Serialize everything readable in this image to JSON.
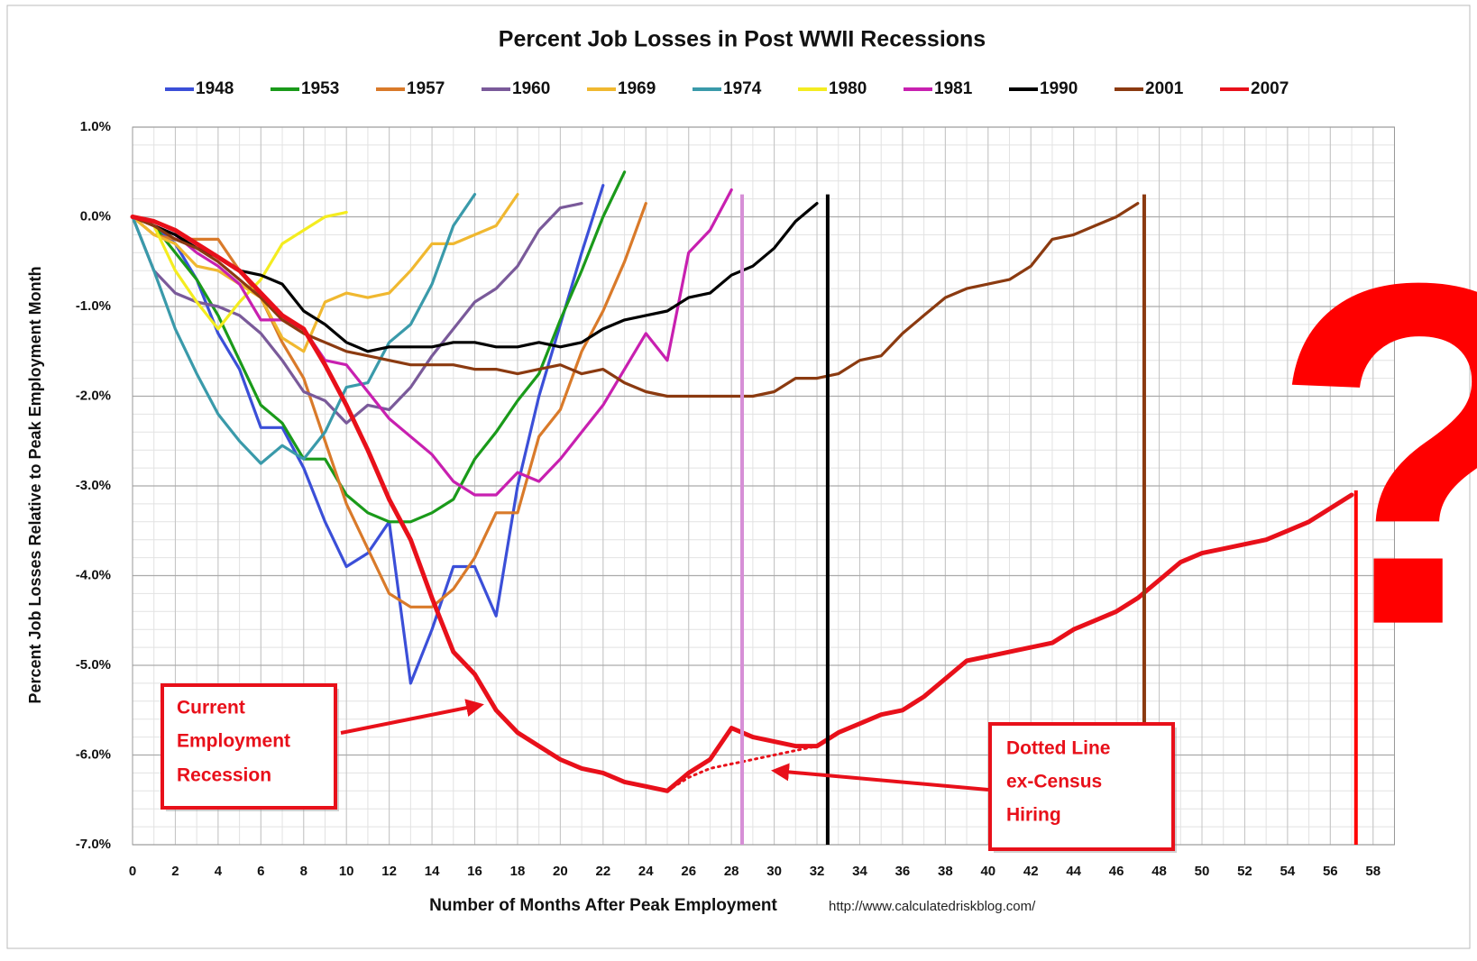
{
  "chart_data": {
    "type": "line",
    "title": "Percent Job Losses in Post WWII Recessions",
    "xlabel": "Number of Months After Peak Employment",
    "ylabel": "Percent Job Losses Relative to Peak Employment Month",
    "source": "http://www.calculatedriskblog.com/",
    "x": [
      0,
      1,
      2,
      3,
      4,
      5,
      6,
      7,
      8,
      9,
      10,
      11,
      12,
      13,
      14,
      15,
      16,
      17,
      18,
      19,
      20,
      21,
      22,
      23,
      24,
      25,
      26,
      27,
      28,
      29,
      30,
      31,
      32,
      33,
      34,
      35,
      36,
      37,
      38,
      39,
      40,
      41,
      42,
      43,
      44,
      45,
      46,
      47,
      48,
      49,
      50,
      51,
      52,
      53,
      54,
      55,
      56,
      57
    ],
    "xlim": [
      0,
      59
    ],
    "ylim": [
      -7,
      1
    ],
    "xticks": [
      0,
      2,
      4,
      6,
      8,
      10,
      12,
      14,
      16,
      18,
      20,
      22,
      24,
      26,
      28,
      30,
      32,
      34,
      36,
      38,
      40,
      42,
      44,
      46,
      48,
      50,
      52,
      54,
      56,
      58
    ],
    "yticks": [
      {
        "value": -7,
        "label": "-7.0%"
      },
      {
        "value": -6,
        "label": "-6.0%"
      },
      {
        "value": -5,
        "label": "-5.0%"
      },
      {
        "value": -4,
        "label": "-4.0%"
      },
      {
        "value": -3,
        "label": "-3.0%"
      },
      {
        "value": -2,
        "label": "-2.0%"
      },
      {
        "value": -1,
        "label": "-1.0%"
      },
      {
        "value": 0,
        "label": "0.0%"
      },
      {
        "value": 1,
        "label": "1.0%"
      }
    ],
    "grid": true,
    "legend": "top",
    "series": [
      {
        "name": "1948",
        "color": "#3b4fd8",
        "values": [
          0,
          -0.1,
          -0.3,
          -0.7,
          -1.3,
          -1.7,
          -2.35,
          -2.35,
          -2.8,
          -3.4,
          -3.9,
          -3.75,
          -3.4,
          -5.2,
          -4.6,
          -3.9,
          -3.9,
          -4.45,
          -3.0,
          -2.0,
          -1.2,
          -0.4,
          0.35,
          null,
          null,
          null,
          null,
          null,
          null,
          null,
          null,
          null,
          null,
          null,
          null,
          null,
          null,
          null,
          null,
          null,
          null,
          null,
          null,
          null,
          null,
          null,
          null,
          null,
          null,
          null,
          null,
          null,
          null,
          null,
          null,
          null,
          null,
          null
        ]
      },
      {
        "name": "1953",
        "color": "#1a9a1a",
        "values": [
          0,
          -0.1,
          -0.4,
          -0.7,
          -1.1,
          -1.6,
          -2.1,
          -2.3,
          -2.7,
          -2.7,
          -3.1,
          -3.3,
          -3.4,
          -3.4,
          -3.3,
          -3.15,
          -2.7,
          -2.4,
          -2.05,
          -1.75,
          -1.15,
          -0.6,
          0,
          0.5,
          null,
          null,
          null,
          null,
          null,
          null,
          null,
          null,
          null,
          null,
          null,
          null,
          null,
          null,
          null,
          null,
          null,
          null,
          null,
          null,
          null,
          null,
          null,
          null,
          null,
          null,
          null,
          null,
          null,
          null,
          null,
          null,
          null,
          null
        ]
      },
      {
        "name": "1957",
        "color": "#d97a2a",
        "values": [
          0,
          -0.2,
          -0.25,
          -0.25,
          -0.25,
          -0.6,
          -0.9,
          -1.4,
          -1.8,
          -2.5,
          -3.2,
          -3.7,
          -4.2,
          -4.35,
          -4.35,
          -4.15,
          -3.8,
          -3.3,
          -3.3,
          -2.45,
          -2.15,
          -1.5,
          -1.05,
          -0.5,
          0.15,
          null,
          null,
          null,
          null,
          null,
          null,
          null,
          null,
          null,
          null,
          null,
          null,
          null,
          null,
          null,
          null,
          null,
          null,
          null,
          null,
          null,
          null,
          null,
          null,
          null,
          null,
          null,
          null,
          null,
          null,
          null,
          null,
          null
        ]
      },
      {
        "name": "1960",
        "color": "#7a5a9a",
        "values": [
          0,
          -0.6,
          -0.85,
          -0.95,
          -1.0,
          -1.1,
          -1.3,
          -1.6,
          -1.95,
          -2.05,
          -2.3,
          -2.1,
          -2.15,
          -1.9,
          -1.55,
          -1.25,
          -0.95,
          -0.8,
          -0.55,
          -0.15,
          0.1,
          0.15,
          null,
          null,
          null,
          null,
          null,
          null,
          null,
          null,
          null,
          null,
          null,
          null,
          null,
          null,
          null,
          null,
          null,
          null,
          null,
          null,
          null,
          null,
          null,
          null,
          null,
          null,
          null,
          null,
          null,
          null,
          null,
          null,
          null,
          null,
          null,
          null
        ]
      },
      {
        "name": "1969",
        "color": "#f0b830",
        "values": [
          0,
          -0.2,
          -0.3,
          -0.55,
          -0.6,
          -0.75,
          -0.9,
          -1.35,
          -1.5,
          -0.95,
          -0.85,
          -0.9,
          -0.85,
          -0.6,
          -0.3,
          -0.3,
          -0.2,
          -0.1,
          0.25,
          null,
          null,
          null,
          null,
          null,
          null,
          null,
          null,
          null,
          null,
          null,
          null,
          null,
          null,
          null,
          null,
          null,
          null,
          null,
          null,
          null,
          null,
          null,
          null,
          null,
          null,
          null,
          null,
          null,
          null,
          null,
          null,
          null,
          null,
          null,
          null,
          null,
          null,
          null
        ]
      },
      {
        "name": "1974",
        "color": "#3a9aaa",
        "values": [
          0,
          -0.6,
          -1.25,
          -1.75,
          -2.2,
          -2.5,
          -2.75,
          -2.55,
          -2.7,
          -2.4,
          -1.9,
          -1.85,
          -1.4,
          -1.2,
          -0.75,
          -0.1,
          0.25,
          null,
          null,
          null,
          null,
          null,
          null,
          null,
          null,
          null,
          null,
          null,
          null,
          null,
          null,
          null,
          null,
          null,
          null,
          null,
          null,
          null,
          null,
          null,
          null,
          null,
          null,
          null,
          null,
          null,
          null,
          null,
          null,
          null,
          null,
          null,
          null,
          null,
          null,
          null,
          null,
          null
        ]
      },
      {
        "name": "1980",
        "color": "#f4ec20",
        "values": [
          0,
          -0.1,
          -0.6,
          -0.95,
          -1.25,
          -0.95,
          -0.7,
          -0.3,
          -0.15,
          0,
          0.05,
          null,
          null,
          null,
          null,
          null,
          null,
          null,
          null,
          null,
          null,
          null,
          null,
          null,
          null,
          null,
          null,
          null,
          null,
          null,
          null,
          null,
          null,
          null,
          null,
          null,
          null,
          null,
          null,
          null,
          null,
          null,
          null,
          null,
          null,
          null,
          null,
          null,
          null,
          null,
          null,
          null,
          null,
          null,
          null,
          null,
          null,
          null
        ]
      },
      {
        "name": "1981",
        "color": "#c820b0",
        "values": [
          0,
          -0.1,
          -0.2,
          -0.4,
          -0.55,
          -0.75,
          -1.15,
          -1.15,
          -1.25,
          -1.6,
          -1.65,
          -1.95,
          -2.25,
          -2.45,
          -2.65,
          -2.95,
          -3.1,
          -3.1,
          -2.85,
          -2.95,
          -2.7,
          -2.4,
          -2.1,
          -1.7,
          -1.3,
          -1.6,
          -0.4,
          -0.15,
          0.3,
          null,
          null,
          null,
          null,
          null,
          null,
          null,
          null,
          null,
          null,
          null,
          null,
          null,
          null,
          null,
          null,
          null,
          null,
          null,
          null,
          null,
          null,
          null,
          null,
          null,
          null,
          null,
          null,
          null
        ]
      },
      {
        "name": "1990",
        "color": "#000000",
        "values": [
          0,
          -0.1,
          -0.2,
          -0.35,
          -0.45,
          -0.6,
          -0.65,
          -0.75,
          -1.05,
          -1.2,
          -1.4,
          -1.5,
          -1.45,
          -1.45,
          -1.45,
          -1.4,
          -1.4,
          -1.45,
          -1.45,
          -1.4,
          -1.45,
          -1.4,
          -1.25,
          -1.15,
          -1.1,
          -1.05,
          -0.9,
          -0.85,
          -0.65,
          -0.55,
          -0.35,
          -0.05,
          0.15,
          null,
          null,
          null,
          null,
          null,
          null,
          null,
          null,
          null,
          null,
          null,
          null,
          null,
          null,
          null,
          null,
          null,
          null,
          null,
          null,
          null,
          null,
          null,
          null,
          null
        ]
      },
      {
        "name": "2001",
        "color": "#8b3a10",
        "values": [
          0,
          -0.1,
          -0.25,
          -0.35,
          -0.5,
          -0.7,
          -0.9,
          -1.15,
          -1.3,
          -1.4,
          -1.5,
          -1.55,
          -1.6,
          -1.65,
          -1.65,
          -1.65,
          -1.7,
          -1.7,
          -1.75,
          -1.7,
          -1.65,
          -1.75,
          -1.7,
          -1.85,
          -1.95,
          -2.0,
          -2.0,
          -2.0,
          -2.0,
          -2.0,
          -1.95,
          -1.8,
          -1.8,
          -1.75,
          -1.6,
          -1.55,
          -1.3,
          -1.1,
          -0.9,
          -0.8,
          -0.75,
          -0.7,
          -0.55,
          -0.25,
          -0.2,
          -0.1,
          0,
          0.15,
          null,
          null,
          null,
          null,
          null,
          null,
          null,
          null,
          null,
          null
        ]
      },
      {
        "color": "#e8101a",
        "style": "dotted",
        "values": [
          null,
          null,
          null,
          null,
          null,
          null,
          null,
          null,
          null,
          null,
          null,
          null,
          null,
          null,
          null,
          null,
          null,
          null,
          null,
          null,
          null,
          null,
          null,
          null,
          null,
          -6.4,
          -6.25,
          -6.15,
          -6.1,
          -6.05,
          -6.0,
          -5.95,
          -5.9,
          null,
          null,
          null,
          null,
          null,
          null,
          null,
          null,
          null,
          null,
          null,
          null,
          null,
          null,
          null,
          null,
          null,
          null,
          null,
          null,
          null,
          null,
          null,
          null,
          null
        ]
      },
      {
        "name": "2007",
        "color": "#e8101a",
        "values": [
          0,
          -0.05,
          -0.15,
          -0.3,
          -0.45,
          -0.6,
          -0.85,
          -1.1,
          -1.25,
          -1.65,
          -2.1,
          -2.6,
          -3.15,
          -3.6,
          -4.25,
          -4.85,
          -5.1,
          -5.5,
          -5.75,
          -5.9,
          -6.05,
          -6.15,
          -6.2,
          -6.3,
          -6.35,
          -6.4,
          -6.2,
          -6.05,
          -5.7,
          -5.8,
          -5.85,
          -5.9,
          -5.9,
          -5.75,
          -5.65,
          -5.55,
          -5.5,
          -5.35,
          -5.15,
          -4.95,
          -4.9,
          -4.85,
          -4.8,
          -4.75,
          -4.6,
          -4.5,
          -4.4,
          -4.25,
          -4.05,
          -3.85,
          -3.75,
          -3.7,
          -3.65,
          -3.6,
          -3.5,
          -3.4,
          -3.25,
          -3.1
        ]
      }
    ],
    "reference_lines": [
      {
        "x": 28.5,
        "ymax": 0.25,
        "color": "#d68fd6"
      },
      {
        "x": 32.5,
        "ymax": 0.25,
        "color": "#000000"
      },
      {
        "x": 47.3,
        "ymax": 0.25,
        "color": "#8b3a10"
      },
      {
        "x": 57.2,
        "ymax": -3.05,
        "color": "#ff0000"
      }
    ],
    "annotations": [
      {
        "lines": [
          "Current",
          "Employment",
          "Recession"
        ]
      },
      {
        "lines": [
          "Dotted Line",
          "ex-Census",
          "Hiring"
        ]
      },
      {
        "text": "?"
      }
    ]
  }
}
